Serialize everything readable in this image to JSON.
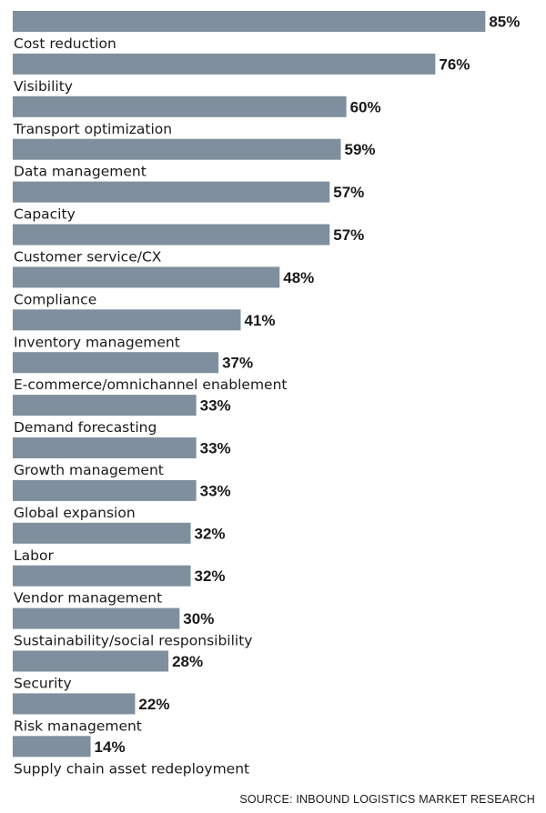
{
  "chart_data": {
    "type": "bar",
    "orientation": "horizontal",
    "categories": [
      "Cost reduction",
      "Visibility",
      "Transport optimization",
      "Data management",
      "Capacity",
      "Customer service/CX",
      "Compliance",
      "Inventory management",
      "E-commerce/omnichannel enablement",
      "Demand forecasting",
      "Growth management",
      "Global expansion",
      "Labor",
      "Vendor management",
      "Sustainability/social responsibility",
      "Security",
      "Risk management",
      "Supply chain asset redeployment"
    ],
    "values": [
      85,
      76,
      60,
      59,
      57,
      57,
      48,
      41,
      37,
      33,
      33,
      33,
      32,
      32,
      30,
      28,
      22,
      14
    ],
    "value_suffix": "%",
    "xlim": [
      0,
      100
    ],
    "bar_color": "#7f8f9d",
    "grid": false,
    "legend": "none"
  },
  "source": "SOURCE: INBOUND LOGISTICS MARKET RESEARCH"
}
